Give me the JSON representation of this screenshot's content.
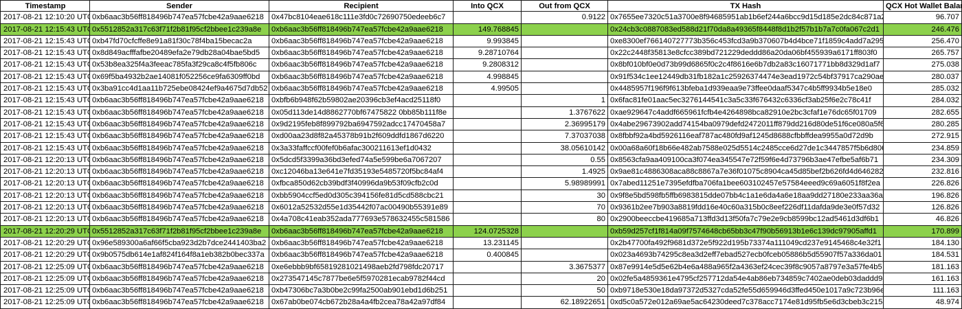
{
  "table": {
    "headers": {
      "timestamp": "Timestamp",
      "sender": "Sender",
      "recipient": "Recipient",
      "into": "Into QCX",
      "out": "Out from QCX",
      "tx": "TX Hash",
      "balance": "QCX Hot Wallet Balance"
    },
    "highlight_color": "#8cd14c",
    "rows": [
      {
        "ts": "2017-08-21 12:10:20 UTC",
        "sender": "0xb6aac3b56ff818496b747ea57fcbe42a9aae6218",
        "recipient": "0x47bc8104eae618c111e3fd0c72690750edeeb6c7",
        "into": "",
        "out": "0.9122",
        "tx": "0x7655ee7320c51a3700e8f94685951ab1b6ef244a6bcc9d15d185e2dc84c871a2",
        "balance": "96.707",
        "highlight": false
      },
      {
        "ts": "2017-08-21 12:15:43 UTC",
        "sender": "0x5512852a317c63f71f2b81f95cf2bbee1c239a8e",
        "recipient": "0xb6aac3b56ff818496b747ea57fcbe42a9aae6218",
        "into": "149.768845",
        "out": "",
        "tx": "0x24cb3c0887083ed588d21f70da8a49365f8448f8d1b2f57b1b7a7c0fa067c2d1",
        "balance": "246.476",
        "highlight": true
      },
      {
        "ts": "2017-08-21 12:15:43 UTC",
        "sender": "0xb47fd70cfcffe8e91a81f30c78f4ba15becac2a",
        "recipient": "0xb6aac3b56ff818496b747ea57fcbe42a9aae6218",
        "into": "9.993845",
        "out": "",
        "tx": "0xe8300ef766140727773b356c453fcd3a9b370607b4d4bce71f1859c4add7a295",
        "balance": "256.470",
        "highlight": false
      },
      {
        "ts": "2017-08-21 12:15:43 UTC",
        "sender": "0x8d849acfffafbe20489efa2e79db28a04bae5bd5",
        "recipient": "0xb6aac3b56ff818496b747ea57fcbe42a9aae6218",
        "into": "9.28710764",
        "out": "",
        "tx": "0x22c2448f35813e8cfcc389bd721229deddd86a20da06bf455939a6171ff803f0",
        "balance": "265.757",
        "highlight": false
      },
      {
        "ts": "2017-08-21 12:15:43 UTC",
        "sender": "0x53b8ea325f4a3feeac785fa3f29ca8c4f5fb806c",
        "recipient": "0xb6aac3b56ff818496b747ea57fcbe42a9aae6218",
        "into": "9.2808312",
        "out": "",
        "tx": "0x8bf010bf0e0d73b99d6865f0c2c4f8616e6b7db2a83c16071771bb8d329d1af7",
        "balance": "275.038",
        "highlight": false
      },
      {
        "ts": "2017-08-21 12:15:43 UTC",
        "sender": "0x69f5ba4932b2ae14081f052256ce9fa6309ff0bd",
        "recipient": "0xb6aac3b56ff818496b747ea57fcbe42a9aae6218",
        "into": "4.998845",
        "out": "",
        "tx": "0x91f534c1ee12449db31fb182a1c25926374474e3ead1972c54bf37917ca290ae",
        "balance": "280.037",
        "highlight": false
      },
      {
        "ts": "2017-08-21 12:15:43 UTC",
        "sender": "0x3ba91cc4d1aa11b725ebe08424ef9a4675d7db52",
        "recipient": "0xb6aac3b56ff818496b747ea57fcbe42a9aae6218",
        "into": "4.99505",
        "out": "",
        "tx": "0x4485957f196f9f613bfeba1d939eaa9e73ffee0daaf5347c4b5ff9934b5e18e0",
        "balance": "285.032",
        "highlight": false
      },
      {
        "ts": "2017-08-21 12:15:43 UTC",
        "sender": "0xb6aac3b56ff818496b747ea57fcbe42a9aae6218",
        "recipient": "0xbfb6b948f62b59802ae20396cb3ef4acd25118f0",
        "into": "",
        "out": "1",
        "tx": "0x6fac81fe01aac5ec3276144541c3a5c33f676432c6336cf3ab25f6e2c78c41f",
        "balance": "284.032",
        "highlight": false
      },
      {
        "ts": "2017-08-21 12:15:43 UTC",
        "sender": "0xb6aac3b56ff818496b747ea57fcbe42a9aae6218",
        "recipient": "0x05d113de14d8862770bf67475822 0bb85b111f8e",
        "into": "",
        "out": "1.3767622",
        "tx": "0xae929647c4addf665961fcfb4e4264898bca82910e2bc3cfaf1e76dc65f01709",
        "balance": "282.655",
        "highlight": false
      },
      {
        "ts": "2017-08-21 12:15:43 UTC",
        "sender": "0xb6aac3b56ff818496b747ea57fcbe42a9aae6218",
        "recipient": "0x9d2195feb8f899792ba6947592adcc17470458a7",
        "into": "",
        "out": "2.36995179",
        "tx": "0x4abe29673902add74154ba0979defd2472011ff879dd216d80de51f6ce080a5f6",
        "balance": "280.285",
        "highlight": false
      },
      {
        "ts": "2017-08-21 12:15:43 UTC",
        "sender": "0xb6aac3b56ff818496b747ea57fcbe42a9aae6218",
        "recipient": "0xd00aa23d8f82a45378b91b2f609ddfd1867d6220",
        "into": "",
        "out": "7.37037038",
        "tx": "0x8fbbf92a4bd5926116eaf787ac480fd9af1245d8688cfbbffdea9955a0d72d9b",
        "balance": "272.915",
        "highlight": false
      },
      {
        "ts": "2017-08-21 12:15:43 UTC",
        "sender": "0xb6aac3b56ff818496b747ea57fcbe42a9aae6218",
        "recipient": "0x3a33faffccf00fef0b6afac300211613ef1d0432",
        "into": "",
        "out": "38.05610142",
        "tx": "0x00a68a60f18b66e482ab7588e025d5514c2485cce6d27de1c3447857f5b6d806",
        "balance": "234.859",
        "highlight": false
      },
      {
        "ts": "2017-08-21 12:20:13 UTC",
        "sender": "0xb6aac3b56ff818496b747ea57fcbe42a9aae6218",
        "recipient": "0x5dcd5f3399a36bd3efed74a5e599be6a7067207",
        "into": "",
        "out": "0.55",
        "tx": "0x8563cfa9aa409100ca3f074ea345547e72f59f6e4d73796b3ae47efbe5af6b71",
        "balance": "234.309",
        "highlight": false
      },
      {
        "ts": "2017-08-21 12:20:13 UTC",
        "sender": "0xb6aac3b56ff818496b747ea57fcbe42a9aae6218",
        "recipient": "0xc12046ba13e641e7fd35193e5485720f5bc84af4",
        "into": "",
        "out": "1.4925",
        "tx": "0x9ae81c4886308aca88c8867a7e36f01075c8904ca45d85bef2b626fd4d646282",
        "balance": "232.816",
        "highlight": false
      },
      {
        "ts": "2017-08-21 12:20:13 UTC",
        "sender": "0xb6aac3b56ff818496b747ea57fcbe42a9aae6218",
        "recipient": "0xfbca850d62cb39bdf3f40996da9b53f09cfb2c0d",
        "into": "",
        "out": "5.98989991",
        "tx": "0x7abed11251e7395efdfba706fa1bee603102457e57584eeed9c69a6051f8f2ea",
        "balance": "226.826",
        "highlight": false
      },
      {
        "ts": "2017-08-21 12:20:13 UTC",
        "sender": "0xb6aac3b56ff818496b747ea57fcbe42a9aae6218",
        "recipient": "0xbb5904ccf5ed0d305c394156fe81d5cd588cbc21",
        "into": "",
        "out": "30",
        "tx": "0x9f8e5bd598fb5ffb6983815dde07bb4c1a1e6da4a6e18aa9dd27180e233aa36a",
        "balance": "196.826",
        "highlight": false
      },
      {
        "ts": "2017-08-21 12:20:13 UTC",
        "sender": "0xb6aac3b56ff818496b747ea57fcbe42a9aae6218",
        "recipient": "0x6012a52532d55e1d35442f07ac00490b55391e89",
        "into": "",
        "out": "70",
        "tx": "0x9361b2ee7b903a8819fdd16e40c60a315b0c8eef226df11dafda9de3e0f57d32",
        "balance": "126.826",
        "highlight": false
      },
      {
        "ts": "2017-08-21 12:20:13 UTC",
        "sender": "0xb6aac3b56ff818496b747ea57fcbe42a9aae6218",
        "recipient": "0x4a708c41eab352ada777693e578632455c581586",
        "into": "",
        "out": "80",
        "tx": "0x2900beeccbe419685a713ffd3d13f50fa7c79e2e9cb8599bc12ad5461d3df6b1",
        "balance": "46.826",
        "highlight": false
      },
      {
        "ts": "2017-08-21 12:20:29 UTC",
        "sender": "0x5512852a317c63f71f2b81f95cf2bbee1c239a8e",
        "recipient": "0xb6aac3b56ff818496b747ea57fcbe42a9aae6218",
        "into": "124.0725328",
        "out": "",
        "tx": "0xb59d257cf1f814a09f7574648cb65bb3c47f90b56913b1e6c139dc97905affd1",
        "balance": "170.899",
        "highlight": true
      },
      {
        "ts": "2017-08-21 12:20:29 UTC",
        "sender": "0x96e589300a6af66f5cba923d2b7dce2441403ba2",
        "recipient": "0xb6aac3b56ff818496b747ea57fcbe42a9aae6218",
        "into": "13.231145",
        "out": "",
        "tx": "0x2b47700fa492f9681d372e5f922d195b73374a111049cd237e9145468c4e32f1",
        "balance": "184.130",
        "highlight": false
      },
      {
        "ts": "2017-08-21 12:20:29 UTC",
        "sender": "0x9b0575db614e1af824f164f8a1eb382b0bec337a",
        "recipient": "0xb6aac3b56ff818496b747ea57fcbe42a9aae6218",
        "into": "0.400845",
        "out": "",
        "tx": "0x023a4693b74295c8ea3d2eff7ebad527ecb0fceb05886b5d55907f57a336da01",
        "balance": "184.531",
        "highlight": false
      },
      {
        "ts": "2017-08-21 12:25:09 UTC",
        "sender": "0xb6aac3b56ff818496b747ea57fcbe42a9aae6218",
        "recipient": "0xe6ebbb9bf65819281021498aeb2fd798fdc20717",
        "into": "",
        "out": "3.3675377",
        "tx": "0x87e9914e5d5e62b4e6a488a965f2a4363ef24cec39f8c9057a8797e3a57fe4b5",
        "balance": "181.163",
        "highlight": false
      },
      {
        "ts": "2017-08-21 12:25:09 UTC",
        "sender": "0xb6aac3b56ff818496b747ea57fcbe42a9aae6218",
        "recipient": "0x273547145c7877be6e5f5970281ecab9782f44cd",
        "into": "",
        "out": "20",
        "tx": "0x02fe5a4859361e4795cf257712da54e4ab86eb734859c7402ae0deb03daddd94",
        "balance": "161.163",
        "highlight": false
      },
      {
        "ts": "2017-08-21 12:25:09 UTC",
        "sender": "0xb6aac3b56ff818496b747ea57fcbe42a9aae6218",
        "recipient": "0xb47306bc7a3b0be2c99fa2500ab901ebd1d6b251",
        "into": "",
        "out": "50",
        "tx": "0xb9718e530e18da97372d5327cda52fe55d659946d3ffed450e1017a9c723b96e",
        "balance": "111.163",
        "highlight": false
      },
      {
        "ts": "2017-08-21 12:25:09 UTC",
        "sender": "0xb6aac3b56ff818496b747ea57fcbe42a9aae6218",
        "recipient": "0x67ab0be074cb672b28a4a4fb2cea78a42a97df84",
        "into": "",
        "out": "62.18922651",
        "tx": "0xd5c0a572e012a69ae5ac64230deed7c378acc7174e81d95fb5e6d3cbeb3c2158",
        "balance": "48.974",
        "highlight": false
      }
    ]
  }
}
